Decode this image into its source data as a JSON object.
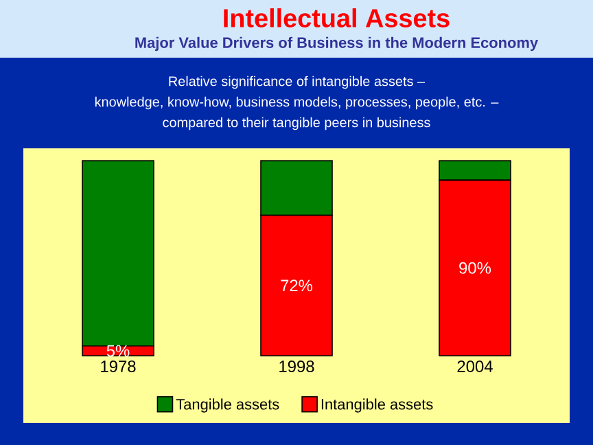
{
  "chart_data": {
    "type": "bar",
    "title": "Intellectual Assets",
    "subtitle": "Major Value Drivers of Business in the Modern Economy",
    "annotations": [
      "Relative significance of intangible assets –",
      "knowledge, know-how, business models, processes, people, etc. –",
      "compared to their tangible peers in business"
    ],
    "categories": [
      "1978",
      "1998",
      "2004"
    ],
    "series": [
      {
        "name": "Intangible assets",
        "color": "#ff0000",
        "values": [
          5,
          72,
          90
        ],
        "value_labels": [
          "5%",
          "72%",
          "90%"
        ]
      },
      {
        "name": "Tangible assets",
        "color": "#008000",
        "values": [
          95,
          28,
          10
        ]
      }
    ],
    "stacked": true,
    "ylim": [
      0,
      100
    ],
    "tick_labels": "x",
    "legend": "bottom"
  }
}
